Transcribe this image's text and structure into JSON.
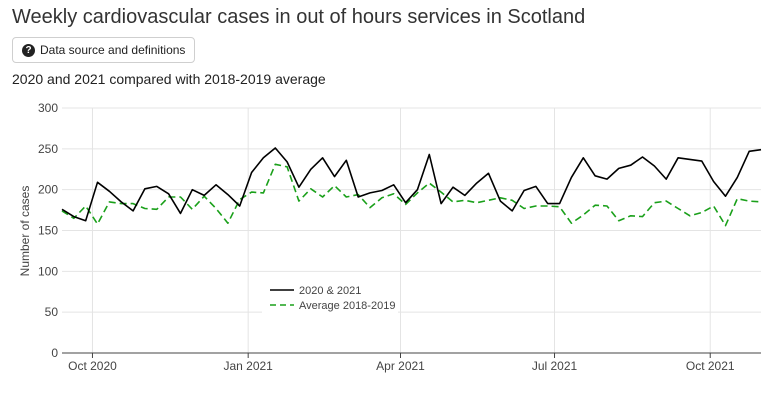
{
  "page": {
    "title": "Weekly cardiovascular cases in out of hours services in Scotland",
    "source_button": "Data source and definitions",
    "source_icon": "question-circle-icon"
  },
  "chart_data": {
    "type": "line",
    "title": "2020 and 2021 compared with 2018-2019 average",
    "xlabel": "",
    "ylabel": "Number of cases",
    "ylim": [
      0,
      300
    ],
    "yticks": [
      0,
      50,
      100,
      150,
      200,
      250,
      300
    ],
    "xlim": [
      "2020-09-13",
      "2021-10-31"
    ],
    "xticks": [
      {
        "date": "2020-10-01",
        "label": "Oct 2020"
      },
      {
        "date": "2021-01-01",
        "label": "Jan 2021"
      },
      {
        "date": "2021-04-01",
        "label": "Apr 2021"
      },
      {
        "date": "2021-07-01",
        "label": "Jul 2021"
      },
      {
        "date": "2021-10-01",
        "label": "Oct 2021"
      }
    ],
    "grid": true,
    "legend_position": "bottom-left",
    "x": [
      "2020-09-13",
      "2020-09-20",
      "2020-09-27",
      "2020-10-04",
      "2020-10-11",
      "2020-10-18",
      "2020-10-25",
      "2020-11-01",
      "2020-11-08",
      "2020-11-15",
      "2020-11-22",
      "2020-11-29",
      "2020-12-06",
      "2020-12-13",
      "2020-12-20",
      "2020-12-27",
      "2021-01-03",
      "2021-01-10",
      "2021-01-17",
      "2021-01-24",
      "2021-01-31",
      "2021-02-07",
      "2021-02-14",
      "2021-02-21",
      "2021-02-28",
      "2021-03-07",
      "2021-03-14",
      "2021-03-21",
      "2021-03-28",
      "2021-04-04",
      "2021-04-11",
      "2021-04-18",
      "2021-04-25",
      "2021-05-02",
      "2021-05-09",
      "2021-05-16",
      "2021-05-23",
      "2021-05-30",
      "2021-06-06",
      "2021-06-13",
      "2021-06-20",
      "2021-06-27",
      "2021-07-04",
      "2021-07-11",
      "2021-07-18",
      "2021-07-25",
      "2021-08-01",
      "2021-08-08",
      "2021-08-15",
      "2021-08-22",
      "2021-08-29",
      "2021-09-05",
      "2021-09-12",
      "2021-09-19",
      "2021-09-26",
      "2021-10-03",
      "2021-10-10",
      "2021-10-17",
      "2021-10-24",
      "2021-10-31"
    ],
    "series": [
      {
        "name": "2020 & 2021",
        "color": "#000000",
        "dash": "solid",
        "values": [
          176,
          167,
          162,
          209,
          198,
          185,
          174,
          201,
          204,
          195,
          171,
          200,
          193,
          206,
          194,
          180,
          221,
          239,
          251,
          234,
          203,
          225,
          239,
          216,
          236,
          191,
          196,
          199,
          206,
          184,
          200,
          243,
          183,
          203,
          193,
          208,
          220,
          186,
          174,
          199,
          204,
          183,
          183,
          215,
          239,
          217,
          213,
          226,
          230,
          240,
          229,
          213,
          239,
          237,
          235,
          210,
          192,
          215,
          247,
          249
        ]
      },
      {
        "name": "Average 2018-2019",
        "color": "#1aa01a",
        "dash": "dashed",
        "values": [
          174,
          165,
          180,
          158,
          185,
          183,
          183,
          177,
          176,
          191,
          191,
          176,
          192,
          177,
          159,
          188,
          197,
          196,
          231,
          228,
          186,
          201,
          191,
          205,
          191,
          194,
          178,
          190,
          195,
          182,
          196,
          208,
          197,
          185,
          187,
          184,
          187,
          190,
          187,
          177,
          180,
          180,
          179,
          159,
          169,
          181,
          180,
          162,
          168,
          167,
          184,
          186,
          177,
          168,
          172,
          180,
          156,
          189,
          186,
          185
        ]
      }
    ]
  }
}
